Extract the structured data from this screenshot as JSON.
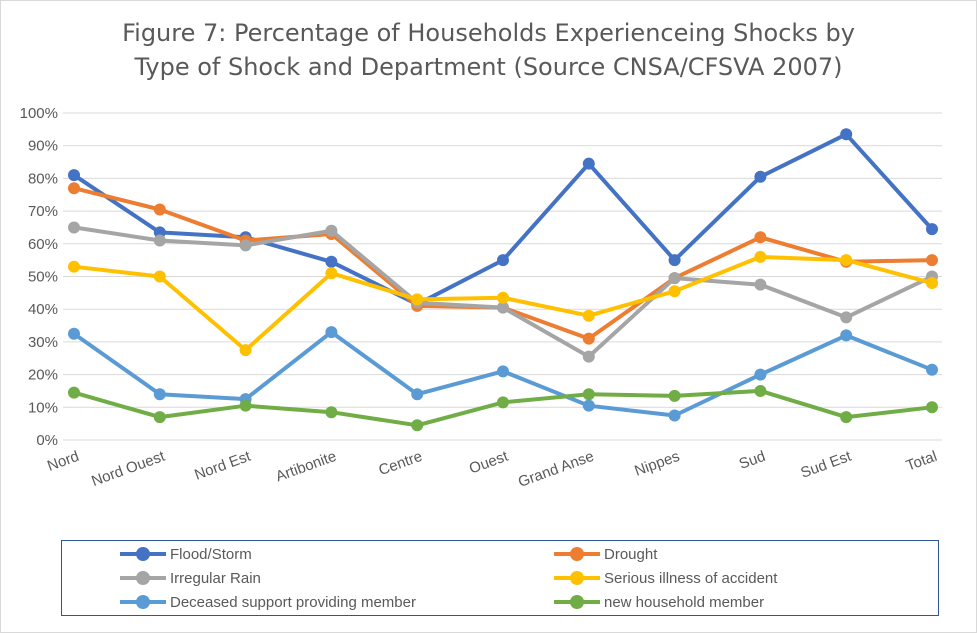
{
  "chart_data": {
    "type": "line",
    "title_line1": "Figure 7: Percentage of Households Experienceing Shocks by",
    "title_line2": "Type of Shock and Department (Source CNSA/CFSVA 2007)",
    "categories": [
      "Nord",
      "Nord Ouest",
      "Nord Est",
      "Artibonite",
      "Centre",
      "Ouest",
      "Grand Anse",
      "Nippes",
      "Sud",
      "Sud Est",
      "Total"
    ],
    "ylim": [
      0,
      100
    ],
    "yticks": [
      "0%",
      "10%",
      "20%",
      "30%",
      "40%",
      "50%",
      "60%",
      "70%",
      "80%",
      "90%",
      "100%"
    ],
    "grid": true,
    "legend_position": "bottom",
    "series": [
      {
        "name": "Flood/Storm",
        "color": "#4472c4",
        "values": [
          81,
          63.5,
          62,
          54.5,
          41.5,
          55,
          84.5,
          55,
          80.5,
          93.5,
          64.5
        ]
      },
      {
        "name": "Drought",
        "color": "#ed7d31",
        "values": [
          77,
          70.5,
          61,
          63,
          41,
          40.5,
          31,
          49.5,
          62,
          54.5,
          55
        ]
      },
      {
        "name": "Irregular Rain",
        "color": "#a5a5a5",
        "values": [
          65,
          61,
          59.5,
          64,
          42,
          40.5,
          25.5,
          49.5,
          47.5,
          37.5,
          50
        ]
      },
      {
        "name": "Serious illness of accident",
        "color": "#ffc000",
        "values": [
          53,
          50,
          27.5,
          51,
          43,
          43.5,
          38,
          45.5,
          56,
          55,
          48
        ]
      },
      {
        "name": "Deceased support providing member",
        "color": "#5b9bd5",
        "values": [
          32.5,
          14,
          12.5,
          33,
          14,
          21,
          10.5,
          7.5,
          20,
          32,
          21.5
        ]
      },
      {
        "name": "new household member",
        "color": "#70ad47",
        "values": [
          14.5,
          7,
          10.5,
          8.5,
          4.5,
          11.5,
          14,
          13.5,
          15,
          7,
          10
        ]
      }
    ]
  }
}
